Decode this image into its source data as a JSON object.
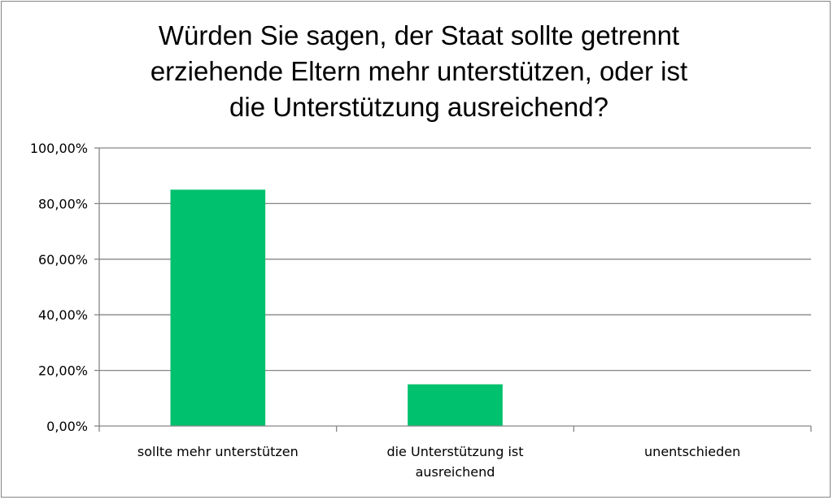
{
  "chart_data": {
    "type": "bar",
    "title": "Würden Sie sagen, der Staat sollte getrennt erziehende Eltern mehr unterstützen, oder ist die Unterstützung ausreichend?",
    "title_lines": [
      "Würden Sie sagen, der Staat sollte getrennt",
      "erziehende Eltern mehr unterstützen, oder ist",
      "die Unterstützung ausreichend?"
    ],
    "categories": [
      "sollte mehr unterstützen",
      "die Unterstützung ist ausreichend",
      "unentschieden"
    ],
    "category_lines": [
      [
        "sollte mehr unterstützen"
      ],
      [
        "die Unterstützung ist",
        "ausreichend"
      ],
      [
        "unentschieden"
      ]
    ],
    "values": [
      85,
      15,
      0
    ],
    "ylim": [
      0,
      100
    ],
    "ytick_values": [
      0,
      20,
      40,
      60,
      80,
      100
    ],
    "ytick_labels": [
      "0,00%",
      "20,00%",
      "40,00%",
      "60,00%",
      "80,00%",
      "100,00%"
    ],
    "xlabel": "",
    "ylabel": "",
    "grid": true,
    "legend": "none",
    "bar_color": "#00C16E",
    "grid_color": "#868686"
  }
}
